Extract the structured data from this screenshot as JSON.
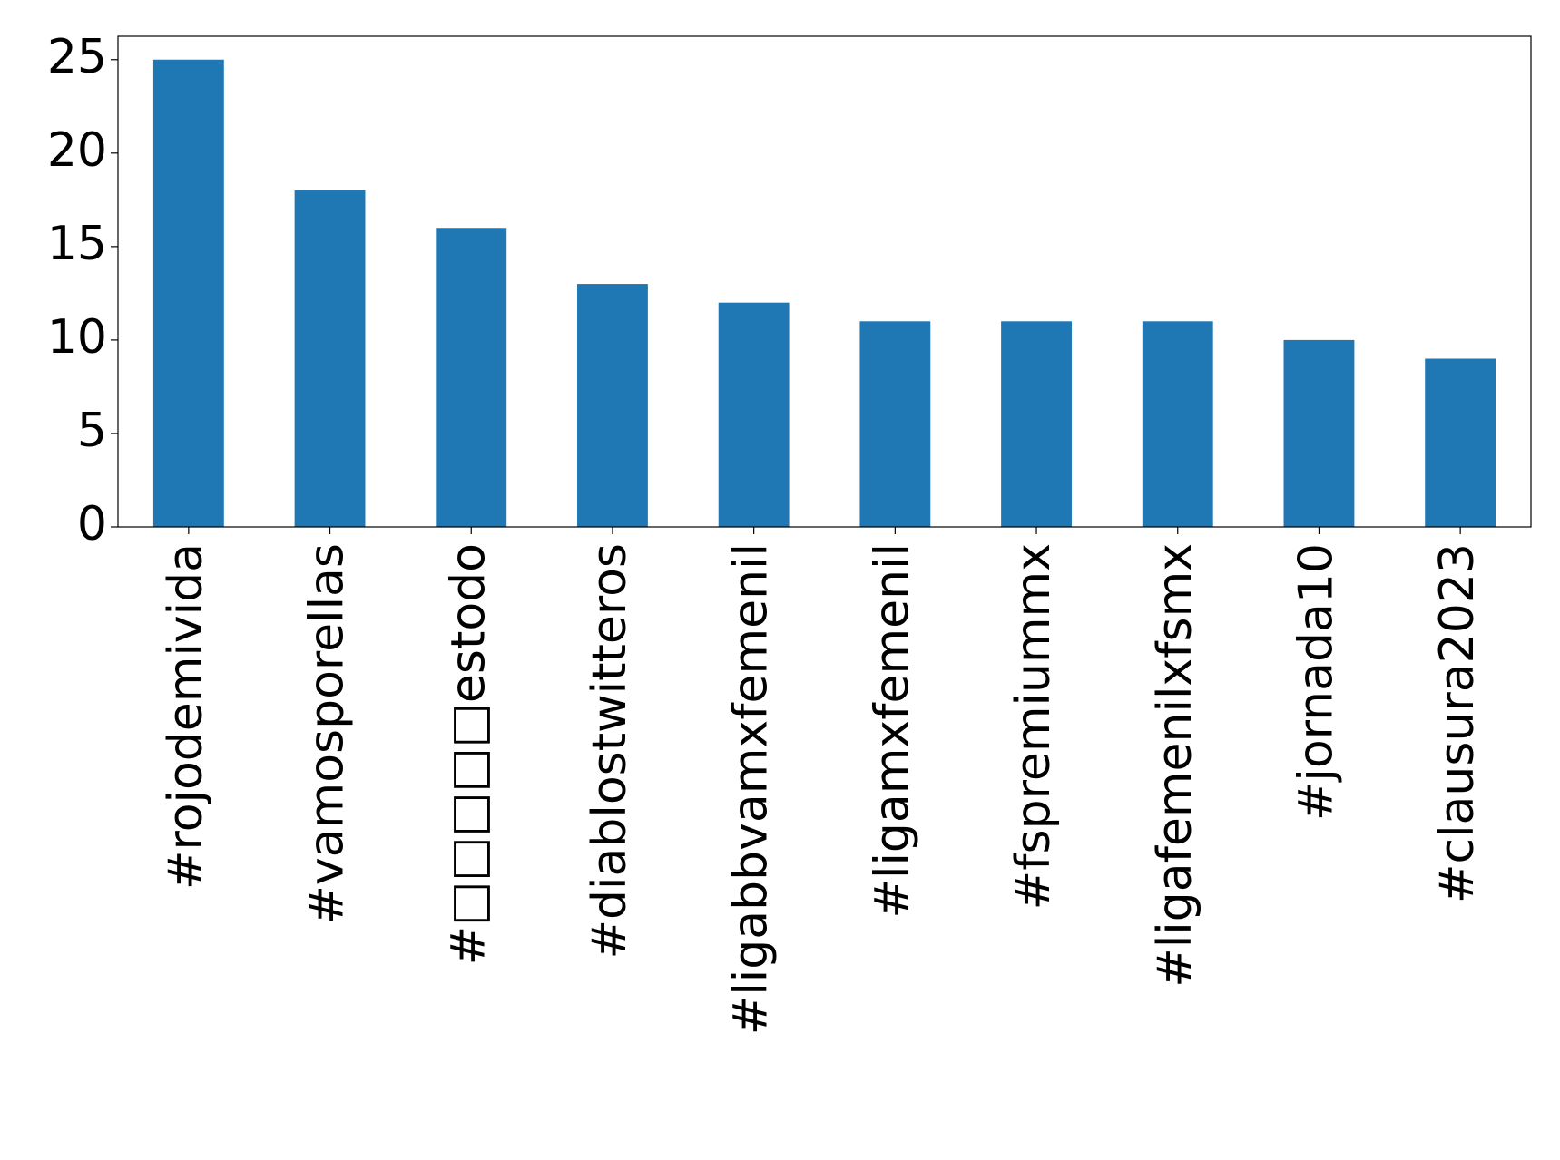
{
  "chart_data": {
    "type": "bar",
    "categories": [
      "#rojodemivida",
      "#vamosporellas",
      "#□□□□□estodo",
      "#diablostwitteros",
      "#ligabbvamxfemenil",
      "#ligamxfemenil",
      "#fspremiummx",
      "#ligafemenilxfsmx",
      "#jornada10",
      "#clausura2023"
    ],
    "values": [
      25,
      18,
      16,
      13,
      12,
      11,
      11,
      11,
      10,
      9
    ],
    "color": "#1f77b4",
    "ylim": [
      0,
      26.25
    ],
    "yticks": [
      0,
      5,
      10,
      15,
      20,
      25
    ],
    "grid": false
  }
}
